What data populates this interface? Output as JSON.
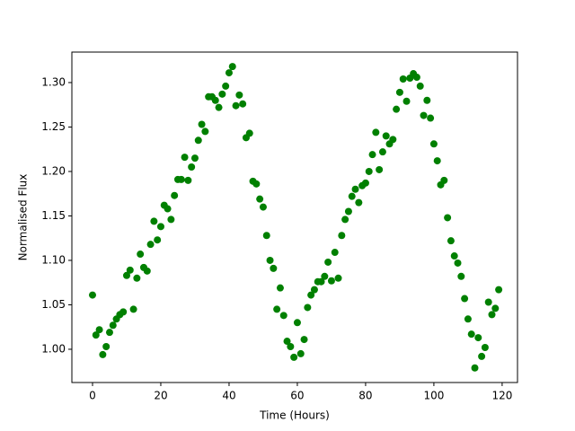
{
  "chart_data": {
    "type": "scatter",
    "xlabel": "Time (Hours)",
    "ylabel": "Normalised Flux",
    "color": "#008000",
    "xlim": [
      -6.05,
      124.5
    ],
    "ylim": [
      0.9626,
      1.3343
    ],
    "xticks": [
      0,
      20,
      40,
      60,
      80,
      100,
      120
    ],
    "yticks": [
      {
        "value": 1.0,
        "label": "1.00"
      },
      {
        "value": 1.05,
        "label": "1.05"
      },
      {
        "value": 1.1,
        "label": "1.10"
      },
      {
        "value": 1.15,
        "label": "1.15"
      },
      {
        "value": 1.2,
        "label": "1.20"
      },
      {
        "value": 1.25,
        "label": "1.25"
      },
      {
        "value": 1.3,
        "label": "1.30"
      }
    ],
    "x": [
      0,
      1,
      2,
      3,
      4,
      5,
      6,
      7,
      8,
      9,
      10,
      11,
      12,
      13,
      14,
      15,
      16,
      17,
      18,
      19,
      20,
      21,
      22,
      23,
      24,
      25,
      26,
      27,
      28,
      29,
      30,
      31,
      32,
      33,
      34,
      35,
      36,
      37,
      38,
      39,
      40,
      41,
      42,
      43,
      44,
      45,
      46,
      47,
      48,
      49,
      50,
      51,
      52,
      53,
      54,
      55,
      56,
      57,
      58,
      59,
      60,
      61,
      62,
      63,
      64,
      65,
      66,
      67,
      68,
      69,
      70,
      71,
      72,
      73,
      74,
      75,
      76,
      77,
      78,
      79,
      80,
      81,
      82,
      83,
      84,
      85,
      86,
      87,
      88,
      89,
      90,
      91,
      92,
      93,
      94,
      95,
      96,
      97,
      98,
      99,
      100,
      101,
      102,
      103,
      104,
      105,
      106,
      107,
      108,
      109,
      110,
      111,
      112,
      113,
      114,
      115,
      116,
      117,
      118,
      119
    ],
    "values": [
      1.061,
      1.016,
      1.022,
      0.994,
      1.003,
      1.019,
      1.027,
      1.034,
      1.039,
      1.042,
      1.083,
      1.089,
      1.045,
      1.08,
      1.107,
      1.092,
      1.088,
      1.118,
      1.144,
      1.123,
      1.138,
      1.162,
      1.158,
      1.146,
      1.173,
      1.191,
      1.191,
      1.216,
      1.19,
      1.205,
      1.215,
      1.235,
      1.253,
      1.245,
      1.284,
      1.284,
      1.28,
      1.272,
      1.287,
      1.296,
      1.311,
      1.318,
      1.274,
      1.286,
      1.276,
      1.238,
      1.243,
      1.189,
      1.186,
      1.169,
      1.16,
      1.128,
      1.1,
      1.091,
      1.045,
      1.069,
      1.038,
      1.009,
      1.003,
      0.991,
      1.03,
      0.995,
      1.011,
      1.047,
      1.061,
      1.067,
      1.076,
      1.076,
      1.082,
      1.098,
      1.077,
      1.109,
      1.08,
      1.128,
      1.146,
      1.155,
      1.172,
      1.18,
      1.165,
      1.184,
      1.187,
      1.2,
      1.219,
      1.244,
      1.202,
      1.222,
      1.24,
      1.231,
      1.236,
      1.27,
      1.289,
      1.304,
      1.279,
      1.305,
      1.31,
      1.306,
      1.296,
      1.263,
      1.28,
      1.26,
      1.231,
      1.212,
      1.185,
      1.19,
      1.148,
      1.122,
      1.105,
      1.097,
      1.082,
      1.057,
      1.034,
      1.017,
      0.979,
      1.013,
      0.992,
      1.002,
      1.053,
      1.039,
      1.046,
      1.067
    ]
  }
}
